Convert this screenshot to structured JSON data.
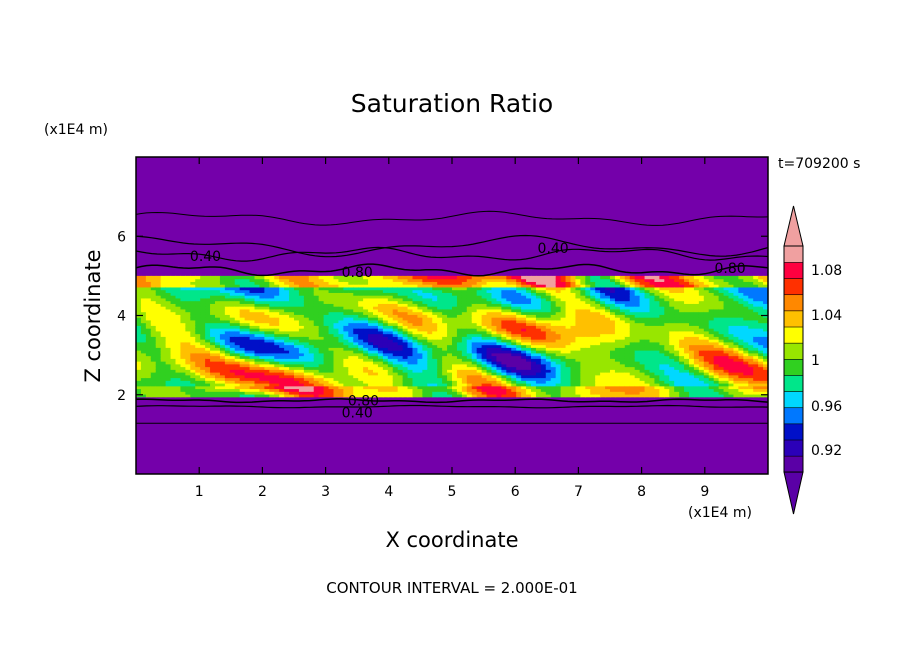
{
  "chart_data": {
    "type": "heatmap",
    "title": "Saturation Ratio",
    "xlabel": "X coordinate",
    "ylabel": "Z coordinate",
    "x_unit": "(x1E4 m)",
    "y_unit": "(x1E4 m)",
    "time_label": "t=709200 s",
    "footer": "CONTOUR INTERVAL = 2.000E-01",
    "xlim": [
      0,
      10
    ],
    "ylim": [
      0,
      8
    ],
    "x_ticks": [
      1,
      2,
      3,
      4,
      5,
      6,
      7,
      8,
      9
    ],
    "y_ticks": [
      2,
      4,
      6
    ],
    "contour_labels": [
      {
        "text": "0.40",
        "x": 1.1,
        "y": 5.5
      },
      {
        "text": "0.80",
        "x": 3.5,
        "y": 5.1
      },
      {
        "text": "0.40",
        "x": 6.6,
        "y": 5.7
      },
      {
        "text": "0.80",
        "x": 9.4,
        "y": 5.2
      },
      {
        "text": "0.80",
        "x": 3.6,
        "y": 1.85
      },
      {
        "text": "0.40",
        "x": 3.5,
        "y": 1.55
      }
    ],
    "colorbar": {
      "colors": [
        "#5a00a6",
        "#2b00b8",
        "#0010c8",
        "#0078ff",
        "#00d8ff",
        "#00e68a",
        "#30d020",
        "#98e600",
        "#ffff00",
        "#ffc000",
        "#ff8800",
        "#ff3000",
        "#ff0040",
        "#f0a0a0"
      ],
      "tick_labels": [
        "0.92",
        "0.96",
        "1",
        "1.04",
        "1.08"
      ]
    },
    "background_color": "#7400aa"
  }
}
